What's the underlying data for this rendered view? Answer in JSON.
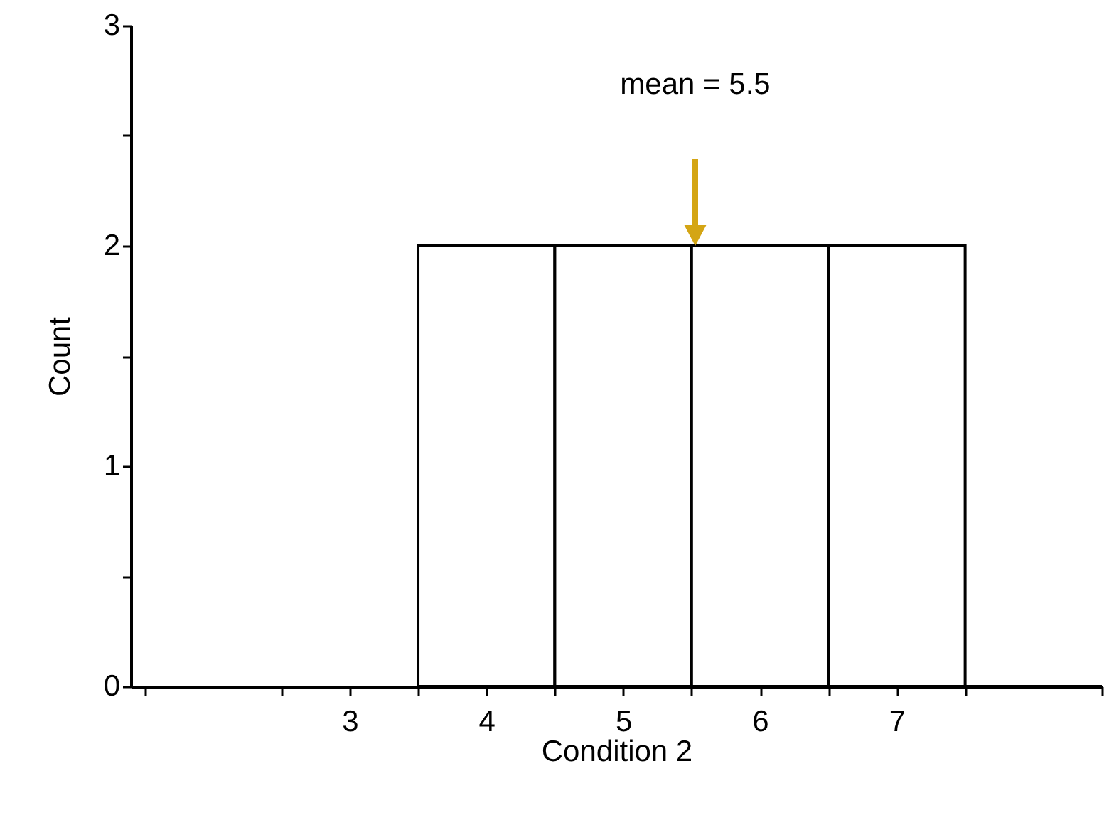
{
  "chart_data": {
    "type": "histogram",
    "xlabel": "Condition 2",
    "ylabel": "Count",
    "bins": [
      3.5,
      4.5,
      5.5,
      6.5,
      7.5,
      8.5
    ],
    "values": [
      2,
      2,
      2,
      2,
      0
    ],
    "color": "#ffffff",
    "xlim": [
      1.4,
      8.5
    ],
    "xticks": [
      {
        "value": 1.5,
        "label": null
      },
      {
        "value": 2.5,
        "label": null
      },
      3,
      4,
      5,
      6,
      7,
      {
        "value": 3.5,
        "label": null
      },
      {
        "value": 4.5,
        "label": null
      },
      {
        "value": 5.5,
        "label": null
      },
      {
        "value": 6.5,
        "label": null
      },
      {
        "value": 7.5,
        "label": null
      },
      {
        "value": 8.5,
        "label": null
      }
    ],
    "ylim": [
      0,
      3
    ],
    "yticks": [
      0,
      {
        "value": 0.5,
        "label": null
      },
      1,
      {
        "value": 1.5,
        "label": null
      },
      2,
      {
        "value": 2.5,
        "label": null
      },
      3
    ],
    "annotations": [
      "mean = 5.5"
    ],
    "grid": false
  }
}
